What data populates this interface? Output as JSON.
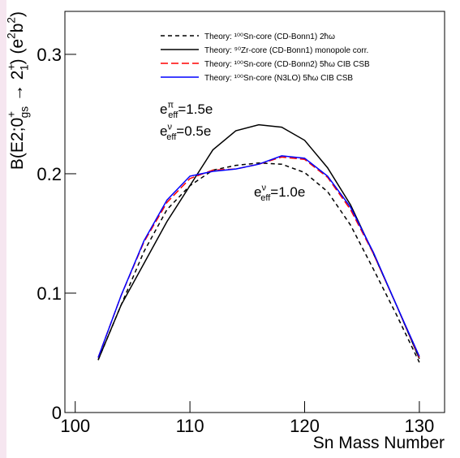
{
  "chart_data": {
    "type": "line",
    "x_label": "Sn Mass Number",
    "y_label": [
      {
        "text": "B(E2;0"
      },
      {
        "sup": "+"
      },
      {
        "sub": "gs"
      },
      {
        "text": " → 2"
      },
      {
        "sup": "+"
      },
      {
        "sub": "1"
      },
      {
        "text": ") (e"
      },
      {
        "sup": "2"
      },
      {
        "text": "b"
      },
      {
        "sup": "2"
      },
      {
        "text": ")"
      }
    ],
    "x": [
      102,
      104,
      106,
      108,
      110,
      112,
      114,
      116,
      118,
      120,
      122,
      124,
      126,
      128,
      130
    ],
    "series": [
      {
        "name": "Theory: ¹⁰⁰Sn-core (CD-Bonn1) 2ħω",
        "color": "#000000",
        "dash": "5,4",
        "values": [
          0.044,
          0.09,
          0.135,
          0.17,
          0.19,
          0.203,
          0.207,
          0.209,
          0.208,
          0.201,
          0.185,
          0.157,
          0.12,
          0.082,
          0.042
        ]
      },
      {
        "name": "Theory: ⁹⁰Zr-core  (CD-Bonn1) monopole corr.",
        "color": "#000000",
        "dash": "",
        "values": [
          0.044,
          0.09,
          0.125,
          0.16,
          0.19,
          0.22,
          0.236,
          0.241,
          0.239,
          0.228,
          0.205,
          0.174,
          0.133,
          0.09,
          0.045
        ]
      },
      {
        "name": "Theory: ¹⁰⁰Sn-core (CD-Bonn2) 5ħω CIB CSB",
        "color": "#ff0000",
        "dash": "9,4",
        "values": [
          0.046,
          0.098,
          0.143,
          0.176,
          0.196,
          0.203,
          0.204,
          0.208,
          0.214,
          0.212,
          0.197,
          0.17,
          0.133,
          0.09,
          0.046
        ]
      },
      {
        "name": "Theory: ¹⁰⁰Sn-core (N3LO) 5ħω CIB CSB",
        "color": "#0000ff",
        "dash": "",
        "values": [
          0.046,
          0.098,
          0.144,
          0.178,
          0.198,
          0.202,
          0.204,
          0.208,
          0.215,
          0.213,
          0.198,
          0.172,
          0.134,
          0.09,
          0.047
        ]
      }
    ],
    "annotations": [
      [
        {
          "text": "e"
        },
        {
          "sup": "π"
        },
        {
          "sub": "eff"
        },
        {
          "text": "=1.5e"
        }
      ],
      [
        {
          "text": "e"
        },
        {
          "sup": "ν"
        },
        {
          "sub": "eff"
        },
        {
          "text": "=0.5e"
        }
      ],
      [
        {
          "text": "e"
        },
        {
          "sup": "ν"
        },
        {
          "sub": "eff"
        },
        {
          "text": "=1.0e"
        }
      ]
    ],
    "xlim": [
      99.1,
      132.2
    ],
    "xticks": [
      100,
      110,
      120,
      130
    ],
    "ylim": [
      0,
      0.336
    ],
    "yticks": [
      0,
      0.1,
      0.2,
      0.3
    ]
  }
}
